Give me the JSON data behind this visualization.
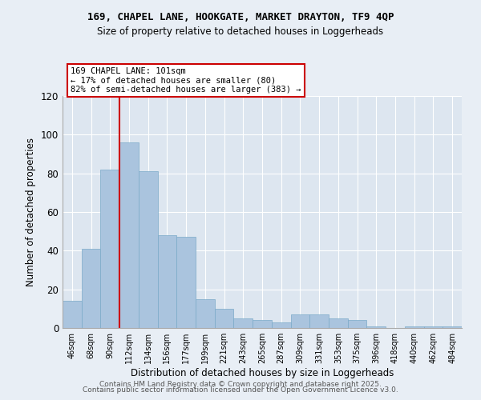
{
  "title1": "169, CHAPEL LANE, HOOKGATE, MARKET DRAYTON, TF9 4QP",
  "title2": "Size of property relative to detached houses in Loggerheads",
  "xlabel": "Distribution of detached houses by size in Loggerheads",
  "ylabel": "Number of detached properties",
  "categories": [
    "46sqm",
    "68sqm",
    "90sqm",
    "112sqm",
    "134sqm",
    "156sqm",
    "177sqm",
    "199sqm",
    "221sqm",
    "243sqm",
    "265sqm",
    "287sqm",
    "309sqm",
    "331sqm",
    "353sqm",
    "375sqm",
    "396sqm",
    "418sqm",
    "440sqm",
    "462sqm",
    "484sqm"
  ],
  "values": [
    14,
    41,
    82,
    96,
    81,
    48,
    47,
    15,
    10,
    5,
    4,
    3,
    7,
    7,
    5,
    4,
    1,
    0,
    1,
    1,
    1
  ],
  "bar_color": "#aac4de",
  "bar_edge_color": "#7aaac8",
  "vline_x": 2.5,
  "vline_color": "#cc0000",
  "annotation_text": "169 CHAPEL LANE: 101sqm\n← 17% of detached houses are smaller (80)\n82% of semi-detached houses are larger (383) →",
  "annotation_box_color": "#cc0000",
  "annotation_box_fill": "#ffffff",
  "ylim": [
    0,
    120
  ],
  "yticks": [
    0,
    20,
    40,
    60,
    80,
    100,
    120
  ],
  "bg_color": "#dde6f0",
  "fig_bg_color": "#e8eef5",
  "footer1": "Contains HM Land Registry data © Crown copyright and database right 2025.",
  "footer2": "Contains public sector information licensed under the Open Government Licence v3.0."
}
